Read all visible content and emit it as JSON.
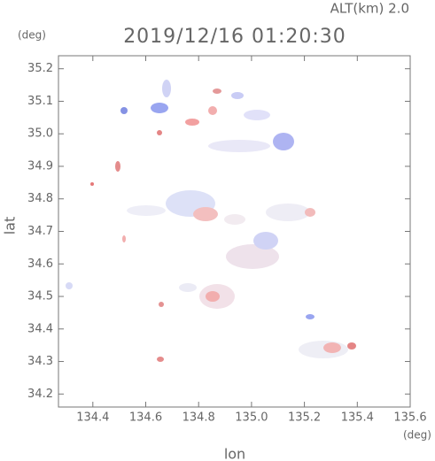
{
  "chart_data": {
    "type": "radar-map",
    "title": "2019/12/16 01:20:30",
    "annotation": "ALT(km)  2.0",
    "xlabel": "lon",
    "ylabel": "lat",
    "x_unit": "(deg)",
    "y_unit": "(deg)",
    "xlim": [
      134.27,
      135.6
    ],
    "ylim": [
      34.16,
      35.24
    ],
    "xticks": [
      134.4,
      134.6,
      134.8,
      {
        "value": 135.0,
        "label": "135.0"
      },
      135.2,
      135.4,
      135.6
    ],
    "yticks": [
      34.2,
      34.3,
      34.4,
      34.5,
      34.6,
      34.7,
      34.8,
      34.9,
      {
        "value": 35.0,
        "label": "35.0"
      },
      35.1,
      35.2
    ]
  }
}
